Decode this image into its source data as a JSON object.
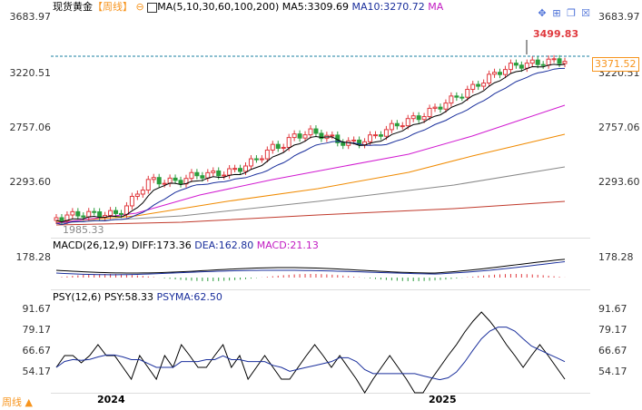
{
  "header": {
    "symbol": "现货黄金",
    "period": "【周线】",
    "indicator_icon": "circle-minus-icon",
    "ma_label": "MA(5,10,30,60,100,200)",
    "ma5": "MA5:3309.69",
    "ma10": "MA10:3270.72",
    "ma": "MA"
  },
  "toolbar_icons": [
    "move-icon",
    "grid-icon",
    "window-icon",
    "close-icon"
  ],
  "main_axis": {
    "left": [
      "3683.97",
      "3220.51",
      "2757.06",
      "2293.60"
    ],
    "right": [
      "3683.97",
      "3220.51",
      "2757.06",
      "2293.60"
    ],
    "current_price": "3371.52",
    "high_label": "3499.83",
    "low_label": "1985.33"
  },
  "macd": {
    "label": "MACD(26,12,9)",
    "diff": "DIFF:173.36",
    "dea": "DEA:162.80",
    "macd": "MACD:21.13",
    "axis_left": "178.28",
    "axis_right": "178.28"
  },
  "psy": {
    "label": "PSY(12,6)",
    "psy": "PSY:58.33",
    "psyma": "PSYMA:62.50",
    "axis_left": [
      "91.67",
      "79.17",
      "66.67",
      "54.17"
    ],
    "axis_right": [
      "91.67",
      "79.17",
      "66.67",
      "54.17"
    ]
  },
  "xaxis": [
    "2024",
    "2025"
  ],
  "footer": {
    "period_button": "周线"
  },
  "colors": {
    "up": "#e0393e",
    "down": "#2a9d3c",
    "ma5": "#000000",
    "ma10": "#1a2f9c",
    "ma_label": "#c21bc2",
    "price_tag": "#f7941d"
  }
}
